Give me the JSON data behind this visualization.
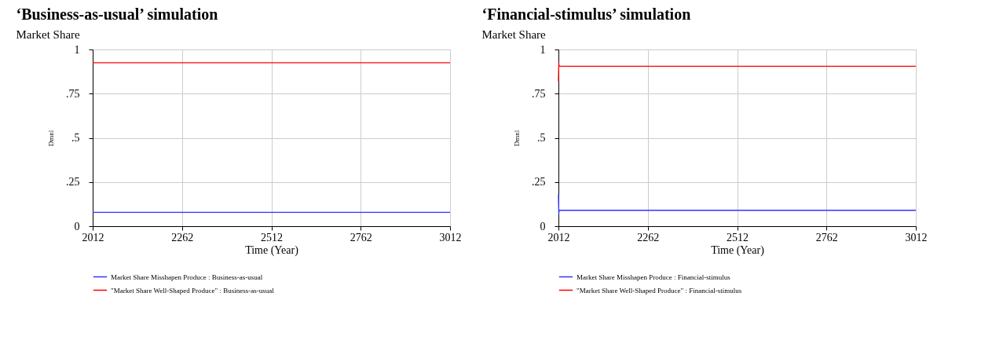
{
  "chart_data": [
    {
      "type": "line",
      "title": "‘Business-as-usual’ simulation",
      "subtitle": "Market Share",
      "xlabel": "Time (Year)",
      "ylabel": "Dmnl",
      "xlim": [
        2012,
        3012
      ],
      "xticks": [
        2012,
        2262,
        2512,
        2762,
        3012
      ],
      "ylim": [
        0,
        1
      ],
      "yticks": [
        0,
        {
          "value": 0.25,
          "label": ".25"
        },
        {
          "value": 0.5,
          "label": ".5"
        },
        {
          "value": 0.75,
          "label": ".75"
        },
        1
      ],
      "grid": true,
      "legend": "bottom",
      "marker": "none",
      "line_style": "solid",
      "series": [
        {
          "name": "Market Share Misshapen Produce : Business-as-usual",
          "color": "#3333ff",
          "x": [
            2012,
            3012
          ],
          "values": [
            0.078,
            0.078
          ]
        },
        {
          "name": "\"Market Share Well-Shaped Produce\" : Business-as-usual",
          "color": "#ff0000",
          "x": [
            2012,
            3012
          ],
          "values": [
            0.925,
            0.925
          ]
        }
      ]
    },
    {
      "type": "line",
      "title": "‘Financial-stimulus’ simulation",
      "subtitle": "Market Share",
      "xlabel": "Time (Year)",
      "ylabel": "Dmnl",
      "xlim": [
        2012,
        3012
      ],
      "xticks": [
        2012,
        2262,
        2512,
        2762,
        3012
      ],
      "ylim": [
        0,
        1
      ],
      "yticks": [
        0,
        {
          "value": 0.25,
          "label": ".25"
        },
        {
          "value": 0.5,
          "label": ".5"
        },
        {
          "value": 0.75,
          "label": ".75"
        },
        1
      ],
      "grid": true,
      "legend": "bottom",
      "marker": "none",
      "line_style": "solid",
      "series": [
        {
          "name": "Market Share Misshapen Produce : Financial-stimulus",
          "color": "#3333ff",
          "x": [
            2012,
            2013,
            2014,
            3012
          ],
          "values": [
            0.18,
            0.07,
            0.09,
            0.09
          ]
        },
        {
          "name": "\"Market Share Well-Shaped Produce\" : Financial-stimulus",
          "color": "#ff0000",
          "x": [
            2012,
            2013,
            2014,
            3012
          ],
          "values": [
            0.82,
            0.925,
            0.905,
            0.905
          ]
        }
      ]
    }
  ]
}
